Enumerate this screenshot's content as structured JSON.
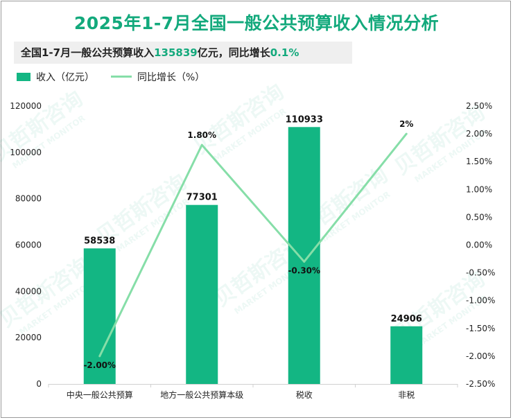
{
  "title": "2025年1-7月全国一般公共预算收入情况分析",
  "summary": {
    "prefix": "全国1-7月一般公共预算收入",
    "amount": "135839",
    "middle": "亿元，同比增长",
    "growth": "0.1%"
  },
  "legend": {
    "bar_label": "收入（亿元）",
    "line_label": "同比增长（%）"
  },
  "watermark": {
    "cn": "贝哲斯咨询",
    "en": "MARKET MONITOR"
  },
  "colors": {
    "bar": "#13b683",
    "line": "#86dea8",
    "title": "#13a97c"
  },
  "chart_data": {
    "type": "bar",
    "categories": [
      "中央一般公共预算",
      "地方一般公共预算本级",
      "税收",
      "非税"
    ],
    "series": [
      {
        "name": "收入（亿元）",
        "type": "bar",
        "axis": "left",
        "values": [
          58538,
          77301,
          110933,
          24906
        ],
        "labels": [
          "58538",
          "77301",
          "110933",
          "24906"
        ]
      },
      {
        "name": "同比增长（%）",
        "type": "line",
        "axis": "right",
        "values": [
          -2.0,
          1.8,
          -0.3,
          2.0
        ],
        "labels": [
          "-2.00%",
          "1.80%",
          "-0.30%",
          "2%"
        ]
      }
    ],
    "y_left": {
      "min": 0,
      "max": 120000,
      "ticks": [
        "0",
        "20000",
        "40000",
        "60000",
        "80000",
        "100000",
        "120000"
      ]
    },
    "y_right": {
      "min": -2.5,
      "max": 2.5,
      "ticks": [
        "-2.50%",
        "-2.00%",
        "-1.50%",
        "-1.00%",
        "-0.50%",
        "0.00%",
        "0.50%",
        "1.00%",
        "1.50%",
        "2.00%",
        "2.50%"
      ]
    },
    "grid": false
  }
}
